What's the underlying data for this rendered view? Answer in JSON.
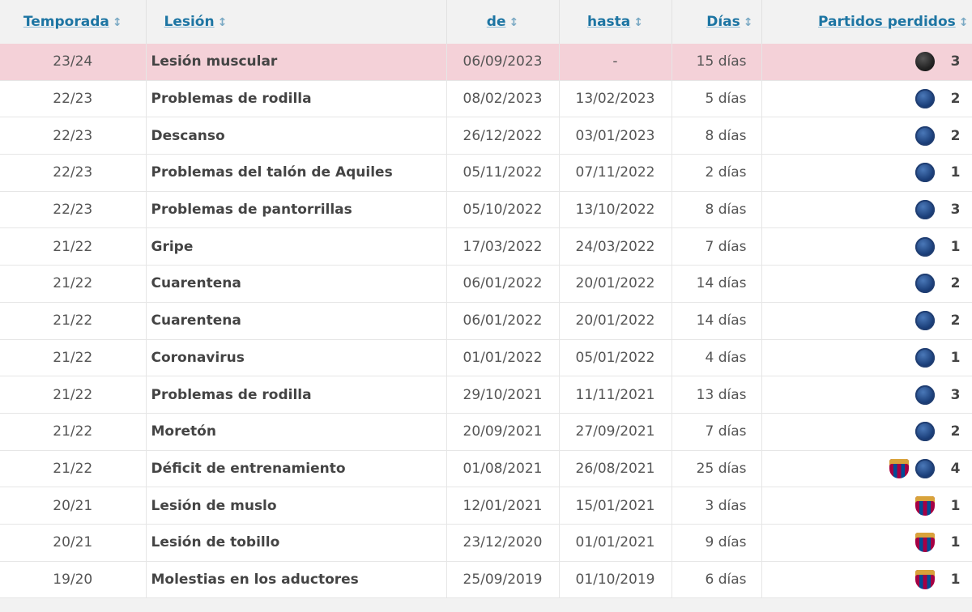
{
  "headers": {
    "season": "Temporada",
    "injury": "Lesión",
    "from": "de",
    "until": "hasta",
    "days": "Días",
    "games_missed": "Partidos perdidos",
    "sort_icon": "↕"
  },
  "colors": {
    "current_row": "#f4d1d8",
    "link": "#1d75a3"
  },
  "rows": [
    {
      "season": "23/24",
      "injury": "Lesión muscular",
      "from": "06/09/2023",
      "until": "-",
      "days": "15 días",
      "clubs": [
        "inter"
      ],
      "games": "3",
      "current": true
    },
    {
      "season": "22/23",
      "injury": "Problemas de rodilla",
      "from": "08/02/2023",
      "until": "13/02/2023",
      "days": "5 días",
      "clubs": [
        "psg"
      ],
      "games": "2"
    },
    {
      "season": "22/23",
      "injury": "Descanso",
      "from": "26/12/2022",
      "until": "03/01/2023",
      "days": "8 días",
      "clubs": [
        "psg"
      ],
      "games": "2"
    },
    {
      "season": "22/23",
      "injury": "Problemas del talón de Aquiles",
      "from": "05/11/2022",
      "until": "07/11/2022",
      "days": "2 días",
      "clubs": [
        "psg"
      ],
      "games": "1"
    },
    {
      "season": "22/23",
      "injury": "Problemas de pantorrillas",
      "from": "05/10/2022",
      "until": "13/10/2022",
      "days": "8 días",
      "clubs": [
        "psg"
      ],
      "games": "3"
    },
    {
      "season": "21/22",
      "injury": "Gripe",
      "from": "17/03/2022",
      "until": "24/03/2022",
      "days": "7 días",
      "clubs": [
        "psg"
      ],
      "games": "1"
    },
    {
      "season": "21/22",
      "injury": "Cuarentena",
      "from": "06/01/2022",
      "until": "20/01/2022",
      "days": "14 días",
      "clubs": [
        "psg"
      ],
      "games": "2"
    },
    {
      "season": "21/22",
      "injury": "Cuarentena",
      "from": "06/01/2022",
      "until": "20/01/2022",
      "days": "14 días",
      "clubs": [
        "psg"
      ],
      "games": "2"
    },
    {
      "season": "21/22",
      "injury": "Coronavirus",
      "from": "01/01/2022",
      "until": "05/01/2022",
      "days": "4 días",
      "clubs": [
        "psg"
      ],
      "games": "1"
    },
    {
      "season": "21/22",
      "injury": "Problemas de rodilla",
      "from": "29/10/2021",
      "until": "11/11/2021",
      "days": "13 días",
      "clubs": [
        "psg"
      ],
      "games": "3"
    },
    {
      "season": "21/22",
      "injury": "Moretón",
      "from": "20/09/2021",
      "until": "27/09/2021",
      "days": "7 días",
      "clubs": [
        "psg"
      ],
      "games": "2"
    },
    {
      "season": "21/22",
      "injury": "Déficit de entrenamiento",
      "from": "01/08/2021",
      "until": "26/08/2021",
      "days": "25 días",
      "clubs": [
        "fcb",
        "psg"
      ],
      "games": "4"
    },
    {
      "season": "20/21",
      "injury": "Lesión de muslo",
      "from": "12/01/2021",
      "until": "15/01/2021",
      "days": "3 días",
      "clubs": [
        "fcb"
      ],
      "games": "1"
    },
    {
      "season": "20/21",
      "injury": "Lesión de tobillo",
      "from": "23/12/2020",
      "until": "01/01/2021",
      "days": "9 días",
      "clubs": [
        "fcb"
      ],
      "games": "1"
    },
    {
      "season": "19/20",
      "injury": "Molestias en los aductores",
      "from": "25/09/2019",
      "until": "01/10/2019",
      "days": "6 días",
      "clubs": [
        "fcb"
      ],
      "games": "1"
    }
  ]
}
